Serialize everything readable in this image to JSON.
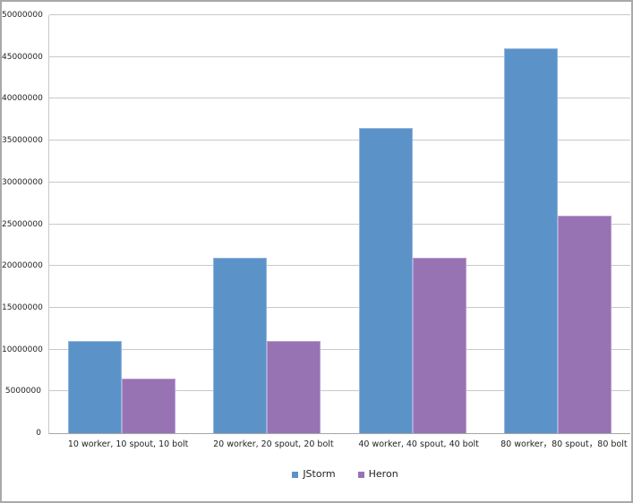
{
  "chart_data": {
    "type": "bar",
    "title": "",
    "xlabel": "",
    "ylabel": "",
    "grid": true,
    "legend_position": "bottom",
    "ylim": [
      0,
      50000000
    ],
    "yticks": [
      0,
      5000000,
      10000000,
      15000000,
      20000000,
      25000000,
      30000000,
      35000000,
      40000000,
      45000000,
      50000000
    ],
    "categories": [
      "10 worker, 10 spout, 10 bolt",
      "20 worker, 20 spout, 20 bolt",
      "40 worker, 40 spout, 40 bolt",
      "80 worker，80 spout，80 bolt"
    ],
    "series": [
      {
        "name": "JStorm",
        "color": "#5b93c9",
        "border_color": "#93b6dd",
        "values": [
          11000000,
          21000000,
          36500000,
          46000000
        ]
      },
      {
        "name": "Heron",
        "color": "#9873b4",
        "border_color": "#bb9ed1",
        "values": [
          6500000,
          11000000,
          21000000,
          26000000
        ]
      }
    ]
  },
  "colors": {
    "gridline": "#c9c9c9",
    "axis_line": "#a6a6a6",
    "frame_border": "#a9a9a9",
    "background": "#ffffff",
    "text": "#1f1f1f"
  }
}
